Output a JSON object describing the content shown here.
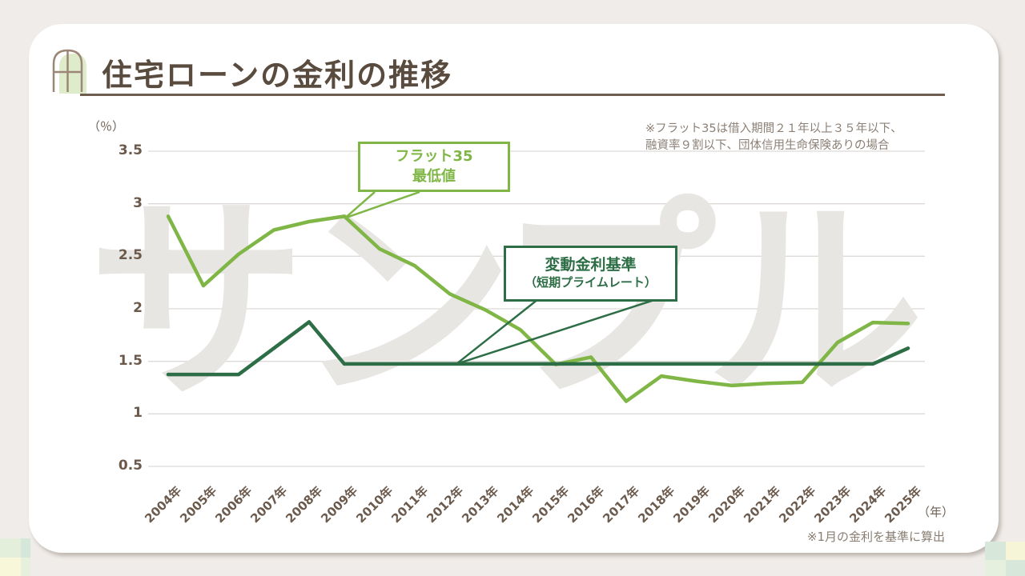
{
  "page": {
    "title": "住宅ローンの金利の推移"
  },
  "watermark": "サンプル",
  "notes": {
    "flat35_condition_line1": "※フラット35は借入期間２１年以上３５年以下、",
    "flat35_condition_line2": "融資率９割以下、団体信用生命保険ありの場合",
    "calculation_basis": "※1月の金利を基準に算出"
  },
  "chart_data": {
    "type": "line",
    "title": "住宅ローンの金利の推移",
    "y_axis_unit": "（％）",
    "x_axis_unit": "（年）",
    "ylim": [
      0.5,
      3.5
    ],
    "grid": true,
    "y_ticks": [
      3.5,
      3,
      2.5,
      2,
      1.5,
      1,
      0.5
    ],
    "categories": [
      "2004年",
      "2005年",
      "2006年",
      "2007年",
      "2008年",
      "2009年",
      "2010年",
      "2011年",
      "2012年",
      "2013年",
      "2014年",
      "2015年",
      "2016年",
      "2017年",
      "2018年",
      "2019年",
      "2020年",
      "2021年",
      "2022年",
      "2023年",
      "2024年",
      "2025年"
    ],
    "series": [
      {
        "name": "フラット35 最低値",
        "color": "#7fb645",
        "values": [
          2.88,
          2.22,
          2.52,
          2.75,
          2.83,
          2.88,
          2.57,
          2.41,
          2.14,
          1.99,
          1.8,
          1.47,
          1.54,
          1.12,
          1.36,
          1.31,
          1.27,
          1.29,
          1.3,
          1.68,
          1.87,
          1.86
        ]
      },
      {
        "name": "変動金利基準（短期プライムレート）",
        "color": "#2d6e46",
        "values": [
          1.375,
          1.375,
          1.375,
          1.625,
          1.875,
          1.475,
          1.475,
          1.475,
          1.475,
          1.475,
          1.475,
          1.475,
          1.475,
          1.475,
          1.475,
          1.475,
          1.475,
          1.475,
          1.475,
          1.475,
          1.475,
          1.625
        ]
      }
    ],
    "callouts": [
      {
        "line1": "フラット35",
        "line2": "最低値",
        "series_index": 0,
        "points_to_category": "2009年",
        "points_to_index": 5
      },
      {
        "line1": "変動金利基準",
        "line2": "（短期プライムレート）",
        "series_index": 1,
        "points_to_category": "2012年",
        "points_to_index": 8
      }
    ],
    "legend_position": "callouts-on-chart"
  },
  "colors": {
    "background": "#f0ece9",
    "card": "#ffffff",
    "title_brown": "#5a4b3f",
    "axis_label_brown": "#6b5a4c",
    "note_gray": "#8c8076",
    "gridline": "#dcd9d6",
    "watermark_gray": "#e8e6e3",
    "flat35_green": "#7fb645",
    "variable_green": "#2d6e46"
  },
  "icons": {
    "title_icon": "window-icon"
  },
  "decorations": {
    "corner_squares_bottom_left": [
      "#e3efda",
      "#d5e7d9",
      "#f9f7d9",
      "#e6f0dd"
    ],
    "corner_squares_bottom_right": [
      "#d7e8db",
      "#f7f5d8",
      "#e6f0de",
      "#d7e8db"
    ]
  }
}
